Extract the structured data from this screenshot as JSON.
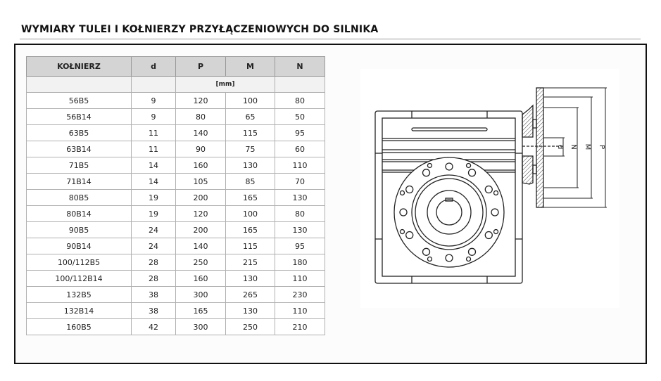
{
  "title": "WYMIARY TULEI I KOŁNIERZY PRZYŁĄCZENIOWYCH DO SILNIKA",
  "table": {
    "headers": [
      "KOŁNIERZ",
      "d",
      "P",
      "M",
      "N"
    ],
    "unit": "[mm]",
    "rows": [
      [
        "56B5",
        "9",
        "120",
        "100",
        "80"
      ],
      [
        "56B14",
        "9",
        "80",
        "65",
        "50"
      ],
      [
        "63B5",
        "11",
        "140",
        "115",
        "95"
      ],
      [
        "63B14",
        "11",
        "90",
        "75",
        "60"
      ],
      [
        "71B5",
        "14",
        "160",
        "130",
        "110"
      ],
      [
        "71B14",
        "14",
        "105",
        "85",
        "70"
      ],
      [
        "80B5",
        "19",
        "200",
        "165",
        "130"
      ],
      [
        "80B14",
        "19",
        "120",
        "100",
        "80"
      ],
      [
        "90B5",
        "24",
        "200",
        "165",
        "130"
      ],
      [
        "90B14",
        "24",
        "140",
        "115",
        "95"
      ],
      [
        "100/112B5",
        "28",
        "250",
        "215",
        "180"
      ],
      [
        "100/112B14",
        "28",
        "160",
        "130",
        "110"
      ],
      [
        "132B5",
        "38",
        "300",
        "265",
        "230"
      ],
      [
        "132B14",
        "38",
        "165",
        "130",
        "110"
      ],
      [
        "160B5",
        "42",
        "300",
        "250",
        "210"
      ]
    ]
  },
  "drawing": {
    "labels": {
      "d": "d",
      "N": "N",
      "M": "M",
      "P": "P"
    }
  }
}
